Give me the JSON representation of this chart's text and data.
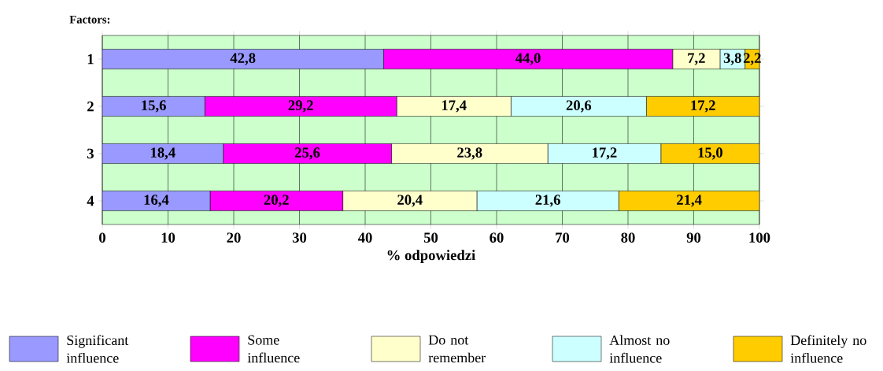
{
  "chart_data": {
    "type": "bar",
    "orientation": "horizontal",
    "stacked": true,
    "ylabel": "Factors:",
    "xlabel": "%  odpowiedzi",
    "categories": [
      "1",
      "2",
      "3",
      "4"
    ],
    "series": [
      {
        "name": "Significant influence",
        "color": "#9999ff",
        "values": [
          42.8,
          15.6,
          18.4,
          16.4
        ],
        "value_labels": [
          "42,8",
          "15,6",
          "18,4",
          "16,4"
        ]
      },
      {
        "name": "Some influence",
        "color": "#ff00ff",
        "values": [
          44.0,
          29.2,
          25.6,
          20.2
        ],
        "value_labels": [
          "44,0",
          "29,2",
          "25,6",
          "20,2"
        ]
      },
      {
        "name": "Do not remember",
        "color": "#ffffcc",
        "values": [
          7.2,
          17.4,
          23.8,
          20.4
        ],
        "value_labels": [
          "7,2",
          "17,4",
          "23,8",
          "20,4"
        ]
      },
      {
        "name": "Almost no influence",
        "color": "#ccffff",
        "values": [
          3.8,
          20.6,
          17.2,
          21.6
        ],
        "value_labels": [
          "3,8",
          "20,6",
          "17,2",
          "21,6"
        ]
      },
      {
        "name": "Definitely no influence",
        "color": "#ffcc00",
        "values": [
          2.2,
          17.2,
          15.0,
          21.4
        ],
        "value_labels": [
          "2,2",
          "17,2",
          "15,0",
          "21,4"
        ]
      }
    ],
    "xlim": [
      0,
      100
    ],
    "xticks": [
      0,
      10,
      20,
      30,
      40,
      50,
      60,
      70,
      80,
      90,
      100
    ],
    "grid": "x",
    "legend": "bottom"
  }
}
